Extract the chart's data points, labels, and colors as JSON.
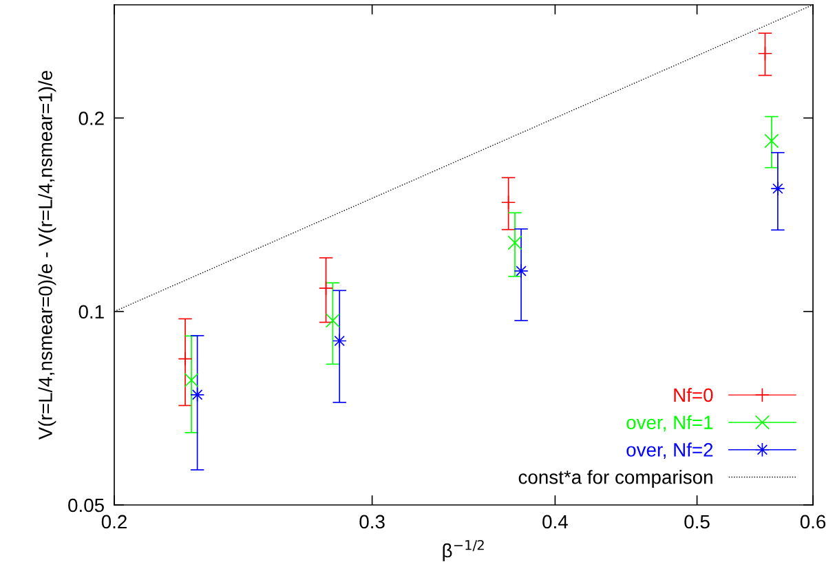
{
  "chart_data": {
    "type": "scatter",
    "xlabel": "β$^{−1/2}$",
    "ylabel": "V(r=L/4,nsmear=0)/e - V(r=L/4,nsmear=1)/e",
    "log": "xy",
    "xlim": [
      0.2,
      0.6
    ],
    "xticks": [
      0.2,
      0.3,
      0.4,
      0.5,
      0.6
    ],
    "ylim": [
      0.05,
      0.3
    ],
    "yticks": [
      0.05,
      0.1,
      0.2
    ],
    "grid": false,
    "legend": "bottom right",
    "series": [
      {
        "name": "Nf=0",
        "color": "#ff0000",
        "marker": "plus",
        "x": [
          0.2236,
          0.279,
          0.3717,
          0.5565
        ],
        "values": [
          0.0844,
          0.1087,
          0.1478,
          0.252
        ],
        "errors": [
          0.013,
          0.0125,
          0.0137,
          0.019
        ]
      },
      {
        "name": "over, Nf=1",
        "color": "#00ff00",
        "marker": "cross",
        "x": [
          0.2258,
          0.282,
          0.3755,
          0.5622
        ],
        "values": [
          0.0782,
          0.0968,
          0.1279,
          0.1842
        ],
        "errors": [
          0.0134,
          0.014,
          0.0145,
          0.0168
        ]
      },
      {
        "name": "over, Nf=2",
        "color": "#0000ff",
        "marker": "star",
        "x": [
          0.2279,
          0.285,
          0.3792,
          0.5677
        ],
        "values": [
          0.0742,
          0.09,
          0.1156,
          0.1553
        ],
        "errors": [
          0.0175,
          0.0178,
          0.0188,
          0.0214
        ]
      },
      {
        "name": "const*a for comparison",
        "type": "line",
        "color": "#000000",
        "line_style": "dotted",
        "marker": "none",
        "x": [
          0.2,
          0.6
        ],
        "values": [
          0.1,
          0.3
        ]
      }
    ]
  }
}
